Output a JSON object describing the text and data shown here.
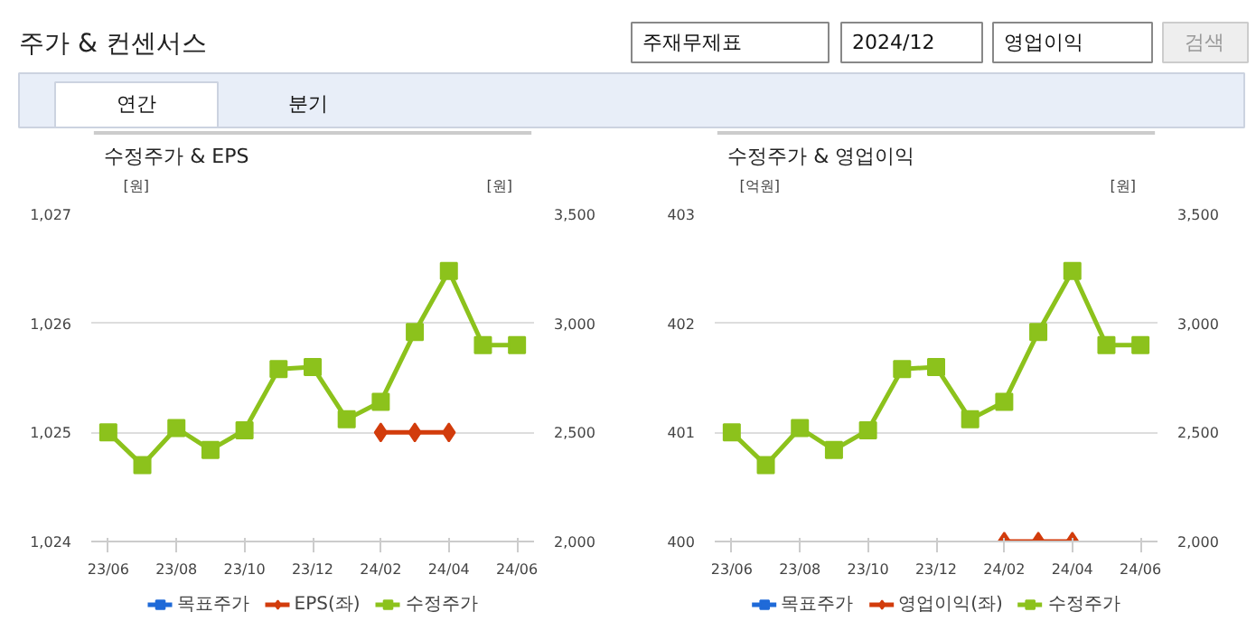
{
  "chart_data": [
    {
      "type": "other",
      "title": "주가 & 컨센서스",
      "annotations": [
        "주재무제표",
        "2024/12",
        "영업이익",
        "검색",
        "연간",
        "분기"
      ]
    },
    {
      "type": "line",
      "title": "수정주가 & EPS",
      "ylabel": "[원]",
      "y2label": "[원]",
      "categories": [
        "23/06",
        null,
        "23/08",
        null,
        "23/10",
        null,
        "23/12",
        null,
        "24/02",
        null,
        "24/04",
        null,
        "24/06"
      ],
      "ylim": [
        1024,
        1027
      ],
      "yticks": [
        {
          "value": 1024,
          "label": "1,024"
        },
        {
          "value": 1025,
          "label": "1,025"
        },
        {
          "value": 1026,
          "label": "1,026"
        },
        {
          "value": 1027,
          "label": "1,027"
        }
      ],
      "y2lim": [
        2000,
        3500
      ],
      "y2ticks": [
        {
          "value": 2000,
          "label": "2,000"
        },
        {
          "value": 2500,
          "label": "2,500"
        },
        {
          "value": 3000,
          "label": "3,000"
        },
        {
          "value": 3500,
          "label": "3,500"
        }
      ],
      "grid": "y",
      "legend": "bottom",
      "series": [
        {
          "name": "목표주가",
          "color": "#1f6ad8",
          "marker": "square",
          "values": [
            null,
            null,
            null,
            null,
            null,
            null,
            null,
            null,
            null,
            null,
            null,
            null,
            null
          ]
        },
        {
          "name": "EPS(좌)",
          "color": "#d23c0c",
          "marker": "diamond",
          "values": [
            null,
            null,
            null,
            null,
            null,
            null,
            null,
            null,
            1025,
            1025,
            1025,
            null,
            null
          ]
        },
        {
          "name": "수정주가",
          "color": "#8cc21c",
          "marker": "square",
          "axis": "y2",
          "values": [
            2500,
            2350,
            2520,
            2420,
            2510,
            2790,
            2800,
            2560,
            2640,
            2960,
            3240,
            2900,
            2900
          ]
        }
      ]
    },
    {
      "type": "line",
      "title": "수정주가 & 영업이익",
      "ylabel": "[억원]",
      "y2label": "[원]",
      "categories": [
        "23/06",
        null,
        "23/08",
        null,
        "23/10",
        null,
        "23/12",
        null,
        "24/02",
        null,
        "24/04",
        null,
        "24/06"
      ],
      "ylim": [
        400,
        403
      ],
      "yticks": [
        400,
        401,
        402,
        403
      ],
      "y2lim": [
        2000,
        3500
      ],
      "y2ticks": [
        {
          "value": 2000,
          "label": "2,000"
        },
        {
          "value": 2500,
          "label": "2,500"
        },
        {
          "value": 3000,
          "label": "3,000"
        },
        {
          "value": 3500,
          "label": "3,500"
        }
      ],
      "grid": "y",
      "legend": "bottom",
      "series": [
        {
          "name": "목표주가",
          "color": "#1f6ad8",
          "marker": "square",
          "values": [
            null,
            null,
            null,
            null,
            null,
            null,
            null,
            null,
            null,
            null,
            null,
            null,
            null
          ]
        },
        {
          "name": "영업이익(좌)",
          "color": "#d23c0c",
          "marker": "diamond",
          "values": [
            null,
            null,
            null,
            null,
            null,
            null,
            null,
            null,
            400,
            400,
            400,
            null,
            null
          ]
        },
        {
          "name": "수정주가",
          "color": "#8cc21c",
          "marker": "square",
          "axis": "y2",
          "values": [
            2500,
            2350,
            2520,
            2420,
            2510,
            2790,
            2800,
            2560,
            2640,
            2960,
            3240,
            2900,
            2900
          ]
        }
      ]
    }
  ]
}
